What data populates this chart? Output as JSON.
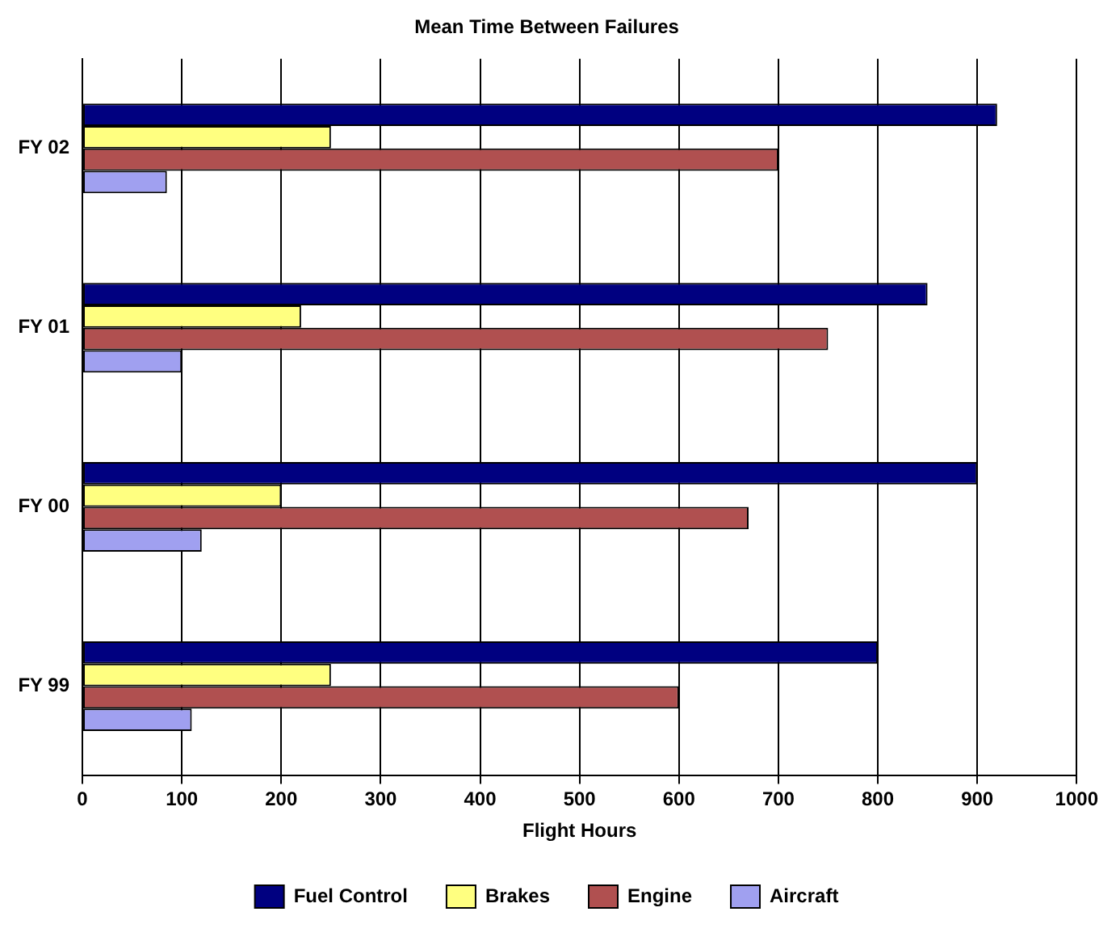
{
  "chart_data": {
    "type": "bar",
    "orientation": "horizontal",
    "title": "Mean Time Between Failures",
    "xlabel": "Flight Hours",
    "categories": [
      "FY 02",
      "FY 01",
      "FY 00",
      "FY 99"
    ],
    "series": [
      {
        "name": "Fuel Control",
        "color": "#000080",
        "values": [
          920,
          850,
          900,
          800
        ]
      },
      {
        "name": "Brakes",
        "color": "#ffff80",
        "values": [
          250,
          220,
          200,
          250
        ]
      },
      {
        "name": "Engine",
        "color": "#b05050",
        "values": [
          700,
          750,
          670,
          600
        ]
      },
      {
        "name": "Aircraft",
        "color": "#a0a0f0",
        "values": [
          85,
          100,
          120,
          110
        ]
      }
    ],
    "xlim": [
      0,
      1000
    ],
    "xticks": [
      0,
      100,
      200,
      300,
      400,
      500,
      600,
      700,
      800,
      900,
      1000
    ],
    "grid": "x",
    "legend": "bottom"
  }
}
